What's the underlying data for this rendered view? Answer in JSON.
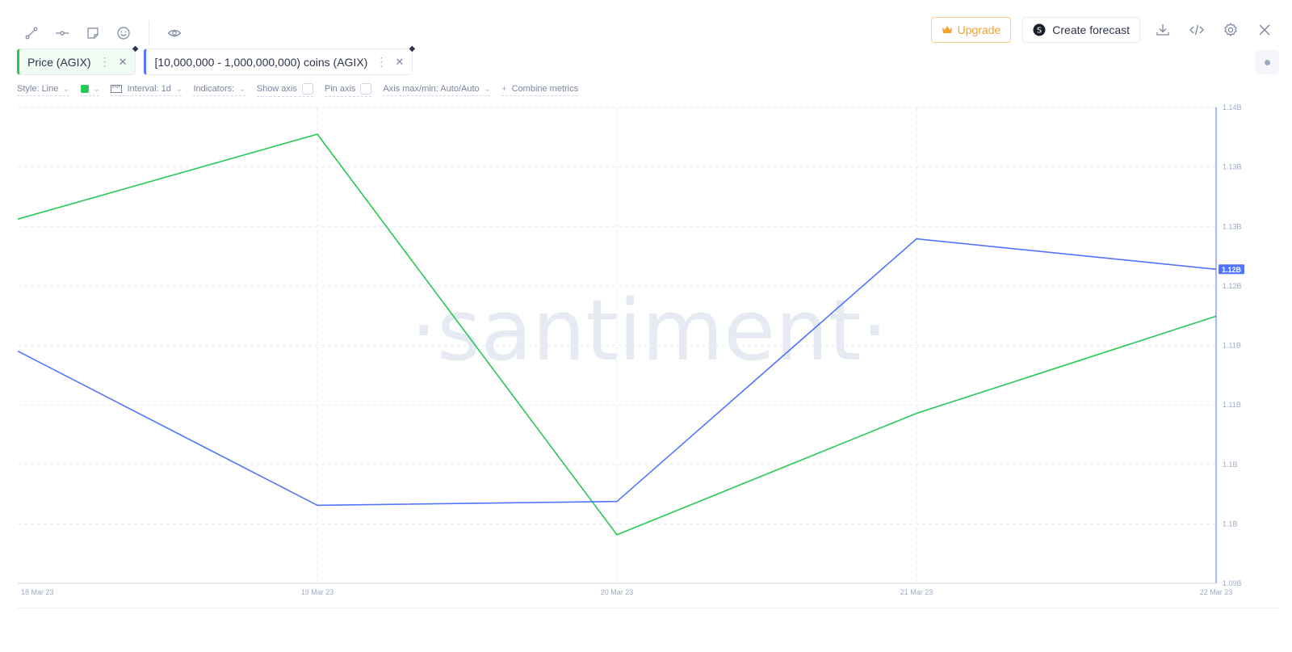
{
  "toolbar": {
    "tools": [
      {
        "icon": "line-draw-icon"
      },
      {
        "icon": "horizontal-ray-icon"
      },
      {
        "icon": "sticky-note-icon"
      },
      {
        "icon": "emoji-icon"
      },
      {
        "icon": "eye-icon"
      }
    ],
    "upgrade_label": "Upgrade",
    "forecast_label": "Create forecast",
    "upgrade_color": "#f6a02a"
  },
  "metrics": [
    {
      "label": "Price (AGIX)",
      "color": "#26c953"
    },
    {
      "label": "[10,000,000 - 1,000,000,000) coins (AGIX)",
      "color": "#5275ff"
    }
  ],
  "settings": {
    "style": "Style: Line",
    "interval": "Interval: 1d",
    "indicators": "Indicators:",
    "show_axis": "Show axis",
    "pin_axis": "Pin axis",
    "axis_maxmin": "Axis max/min: Auto/Auto",
    "combine": "Combine metrics"
  },
  "watermark": "·santiment·",
  "chart_data": {
    "type": "line",
    "categories": [
      "18 Mar 23",
      "19 Mar 23",
      "20 Mar 23",
      "21 Mar 23",
      "22 Mar 23"
    ],
    "y_tick_labels": [
      "1.14B",
      "1.13B",
      "1.13B",
      "1.12B",
      "1.11B",
      "1.11B",
      "1.1B",
      "1.1B",
      "1.09B"
    ],
    "highlight_label": "1.12B",
    "grid": true,
    "series": [
      {
        "name": "Price (AGIX)",
        "color": "#26c953",
        "axis": "hidden",
        "values": [
          0.6,
          0.95,
          -0.7,
          -0.2,
          0.2
        ],
        "ylim": [
          -0.9,
          1.06
        ]
      },
      {
        "name": "[10,000,000 - 1,000,000,000) coins (AGIX)",
        "color": "#5275ff",
        "axis": "right",
        "values": [
          1.1144,
          1.0982,
          1.0986,
          1.1262,
          1.123
        ],
        "ylim": [
          1.09,
          1.14
        ]
      }
    ]
  }
}
